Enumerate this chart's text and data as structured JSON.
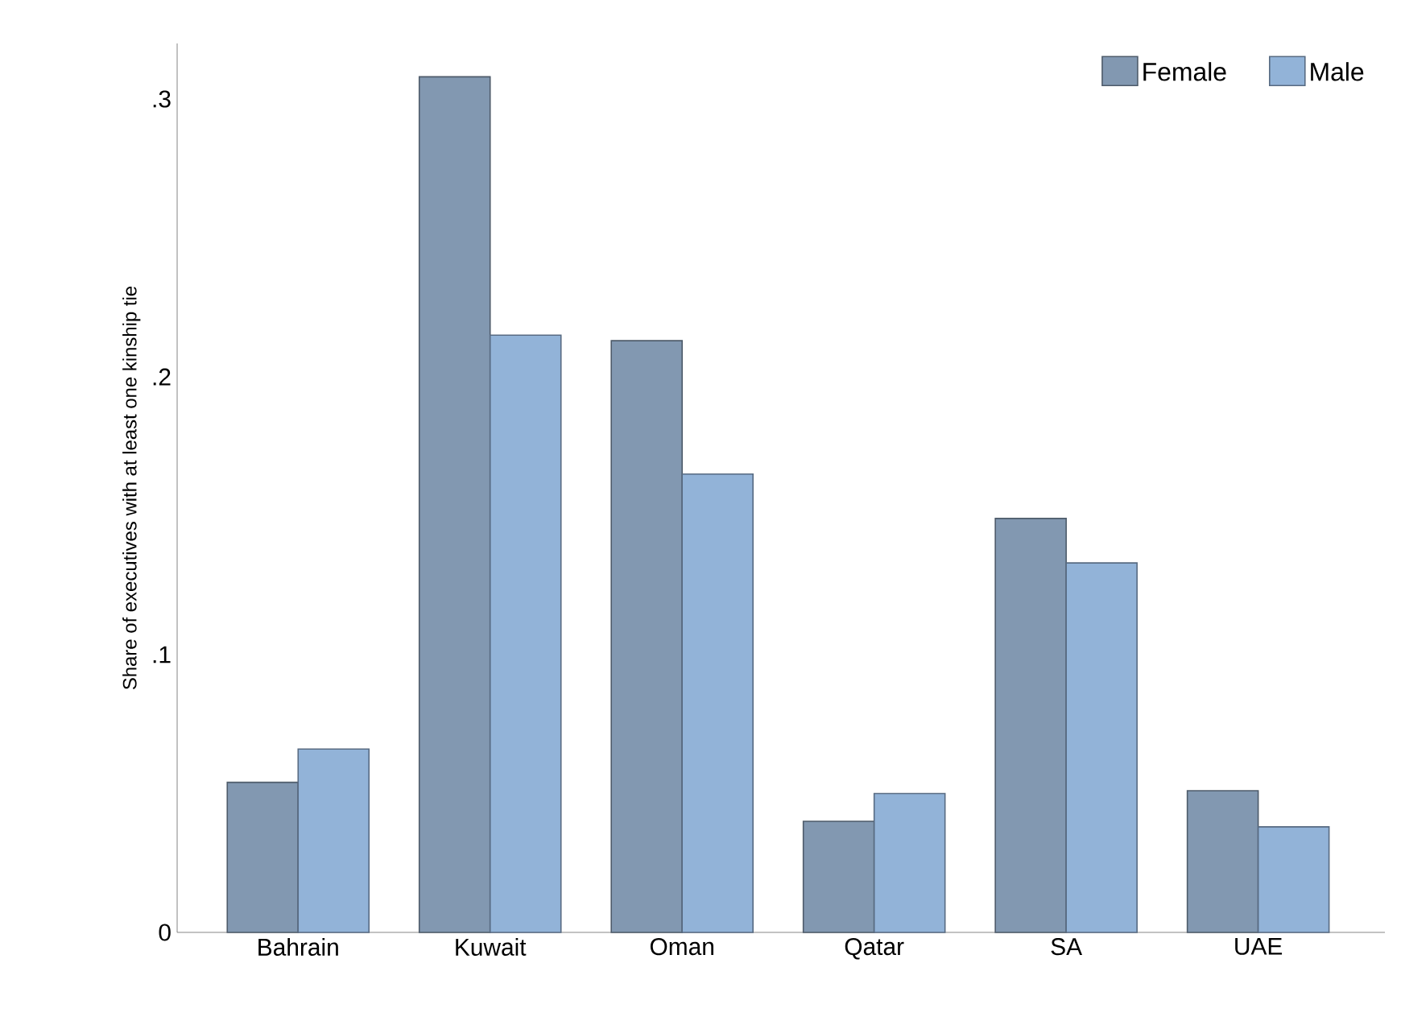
{
  "chart_data": {
    "type": "bar",
    "ylabel": "Share of executives with at least one kinship tie",
    "categories": [
      "Bahrain",
      "Kuwait",
      "Oman",
      "Qatar",
      "SA",
      "UAE"
    ],
    "series": [
      {
        "name": "Female",
        "color": "#8298b1",
        "values": [
          0.054,
          0.308,
          0.213,
          0.04,
          0.149,
          0.051
        ]
      },
      {
        "name": "Male",
        "color": "#92b3d8",
        "values": [
          0.066,
          0.215,
          0.165,
          0.05,
          0.133,
          0.038
        ]
      }
    ],
    "ylim": [
      0,
      0.32
    ],
    "yticks": [
      {
        "value": 0,
        "label": "0"
      },
      {
        "value": 0.1,
        "label": ".1"
      },
      {
        "value": 0.2,
        "label": ".2"
      },
      {
        "value": 0.3,
        "label": ".3"
      }
    ],
    "grid": false,
    "legend": "top right"
  }
}
